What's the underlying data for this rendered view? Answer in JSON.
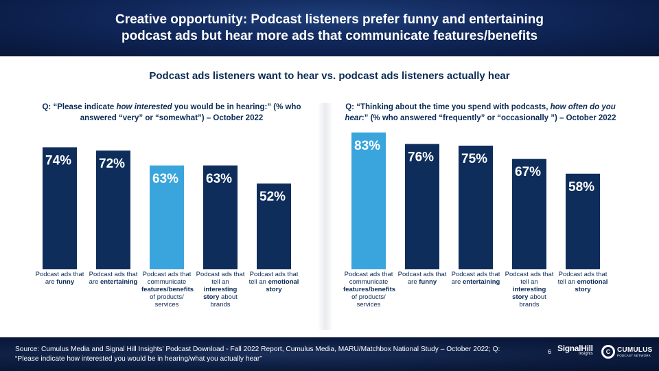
{
  "header": {
    "title": "Creative opportunity: Podcast listeners prefer funny and entertaining podcast ads but hear more ads that communicate features/benefits"
  },
  "subtitle": "Podcast ads listeners want to hear vs. podcast ads listeners actually hear",
  "questions": {
    "left": {
      "pre": "Q: “Please indicate ",
      "em": "how interested",
      "post": " you would be in hearing:” (% who answered “very” or “somewhat”) – October 2022"
    },
    "right": {
      "pre": "Q: “Thinking about the time you spend with podcasts, ",
      "em": "how often do you hear",
      "post": ":” (% who answered “frequently” or “occasionally ”) – October 2022"
    }
  },
  "chart_data": [
    {
      "type": "bar",
      "categories": [
        "Podcast ads that are funny",
        "Podcast ads that are entertaining",
        "Podcast ads that communicate features/benefits of products/ services",
        "Podcast ads that tell an interesting story about brands",
        "Podcast ads that tell an emotional story"
      ],
      "category_labels": [
        {
          "pre": "Podcast ads that are ",
          "bold": "funny",
          "post": ""
        },
        {
          "pre": "Podcast ads that are ",
          "bold": "entertaining",
          "post": ""
        },
        {
          "pre": "Podcast ads that communicate ",
          "bold": "features/benefits",
          "post": " of products/ services"
        },
        {
          "pre": "Podcast ads that tell an ",
          "bold": "interesting story",
          "post": " about brands"
        },
        {
          "pre": "Podcast ads that tell an ",
          "bold": "emotional story",
          "post": ""
        }
      ],
      "values": [
        74,
        72,
        63,
        63,
        52
      ],
      "value_labels": [
        "74%",
        "72%",
        "63%",
        "63%",
        "52%"
      ],
      "colors": [
        "#0e2d5b",
        "#0e2d5b",
        "#3aa5dc",
        "#0e2d5b",
        "#0e2d5b"
      ],
      "ylim": [
        0,
        100
      ],
      "grid": false
    },
    {
      "type": "bar",
      "categories": [
        "Podcast ads that communicate features/benefits of products/ services",
        "Podcast ads that are funny",
        "Podcast ads that are entertaining",
        "Podcast ads that tell an interesting story about brands",
        "Podcast ads that tell an emotional story"
      ],
      "category_labels": [
        {
          "pre": "Podcast ads that communicate ",
          "bold": "features/benefits",
          "post": " of products/ services"
        },
        {
          "pre": "Podcast ads that are ",
          "bold": "funny",
          "post": ""
        },
        {
          "pre": "Podcast ads that are ",
          "bold": "entertaining",
          "post": ""
        },
        {
          "pre": "Podcast ads that tell an ",
          "bold": "interesting story",
          "post": " about brands"
        },
        {
          "pre": "Podcast ads that tell an ",
          "bold": "emotional story",
          "post": ""
        }
      ],
      "values": [
        83,
        76,
        75,
        67,
        58
      ],
      "value_labels": [
        "83%",
        "76%",
        "75%",
        "67%",
        "58%"
      ],
      "colors": [
        "#3aa5dc",
        "#0e2d5b",
        "#0e2d5b",
        "#0e2d5b",
        "#0e2d5b"
      ],
      "ylim": [
        0,
        100
      ],
      "grid": false
    }
  ],
  "footer": {
    "source": "Source: Cumulus Media and Signal Hill Insights' Podcast Download - Fall 2022 Report, Cumulus Media, MARU/Matchbox National Study – October 2022; Q: “Please indicate how interested you would be in hearing/what you actually hear”",
    "page_number": "6",
    "signal_hill_name": "SignalHill",
    "signal_hill_sub": "Insights",
    "cumulus_name": "CUMULUS",
    "cumulus_sub": "PODCAST NETWORK"
  }
}
